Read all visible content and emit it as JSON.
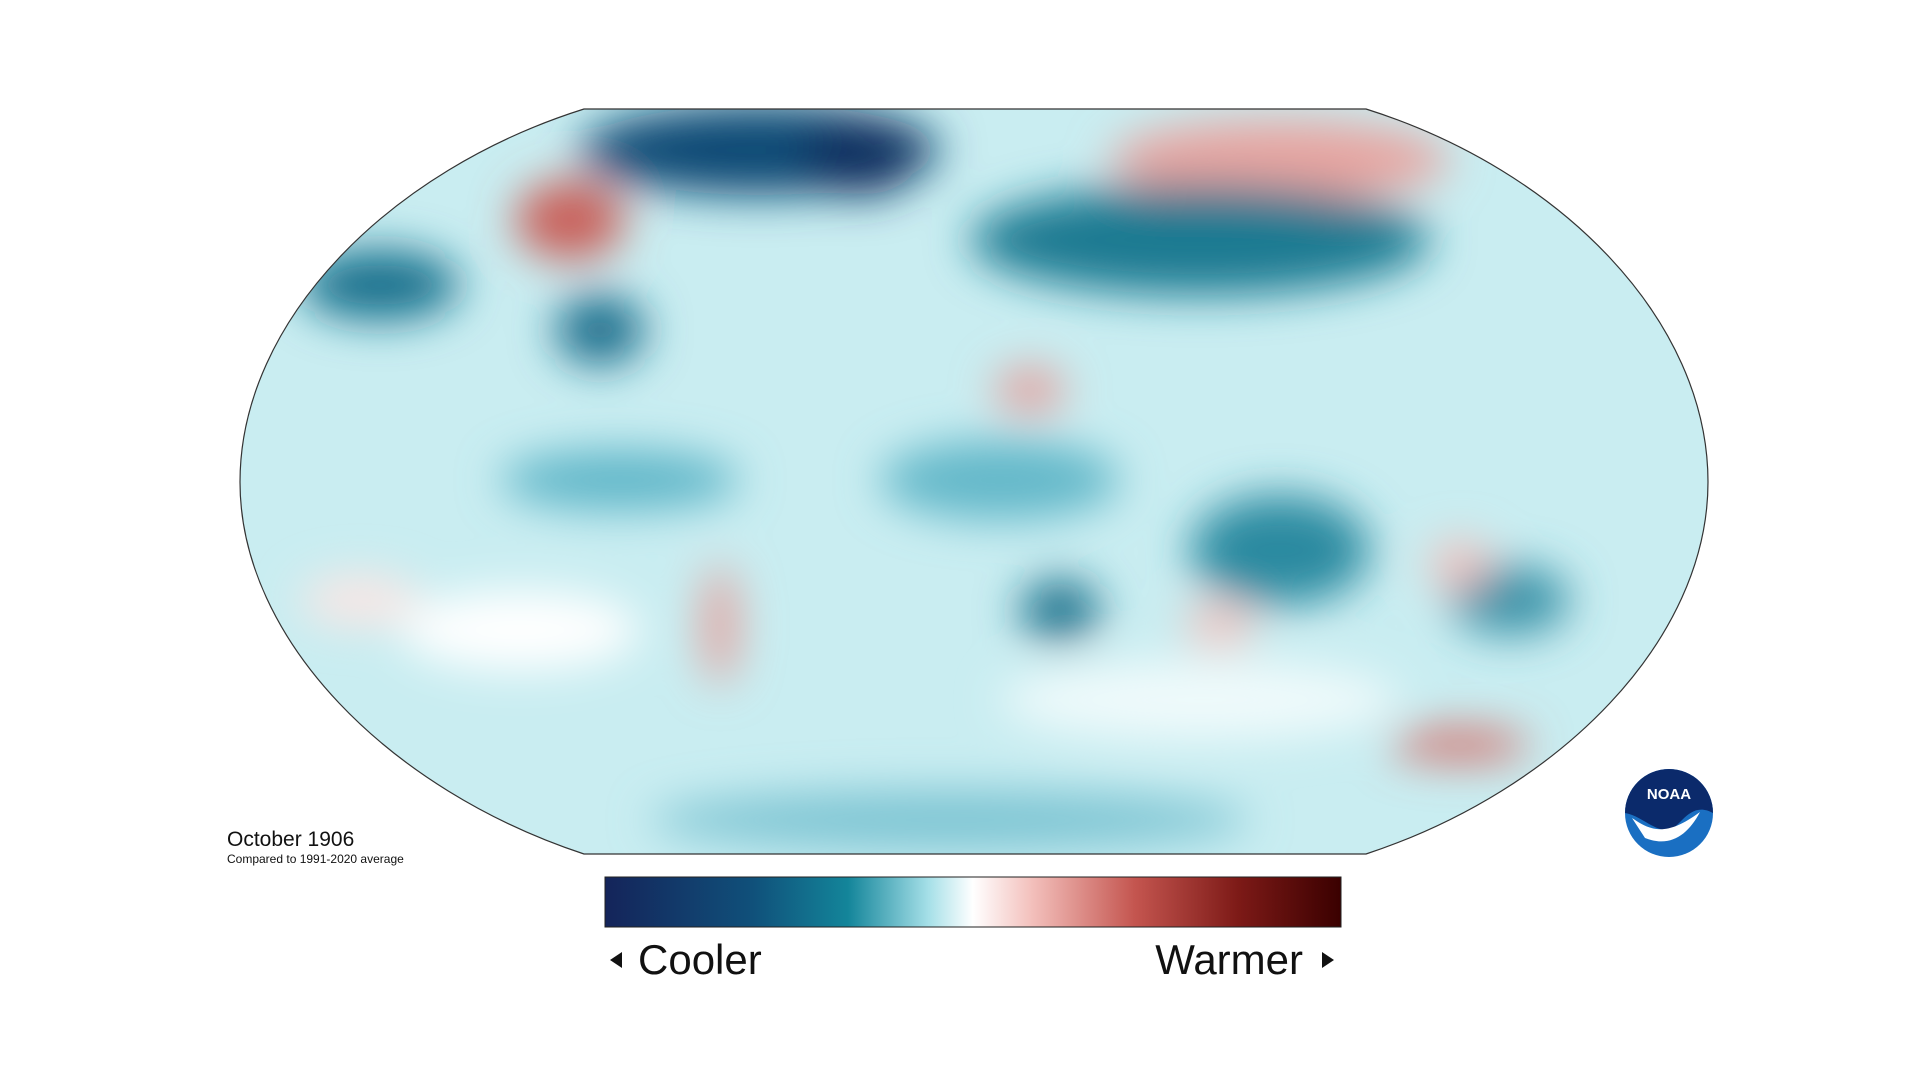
{
  "map": {
    "title": "October 1906",
    "subtitle": "Compared to 1991-2020 average"
  },
  "legend": {
    "low_label": "Cooler",
    "high_label": "Warmer"
  },
  "logo": {
    "text": "NOAA"
  }
}
